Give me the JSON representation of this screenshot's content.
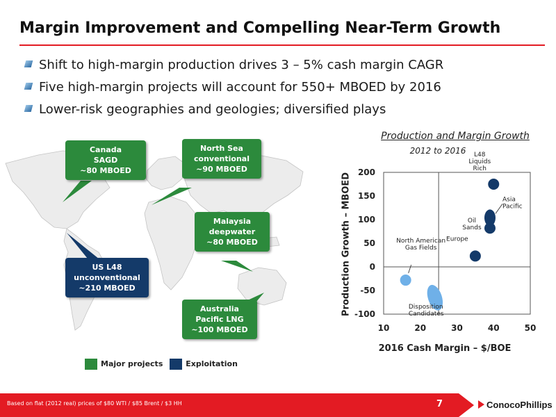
{
  "title": "Margin Improvement and Compelling Near-Term Growth",
  "bullets": [
    "Shift to high-margin production drives 3 – 5% cash margin CAGR",
    "Five high-margin projects will account for 550+ MBOED by 2016",
    "Lower-risk geographies and geologies; diversified plays"
  ],
  "map": {
    "callouts": [
      {
        "lines": [
          "Canada",
          "SAGD",
          "~80 MBOED"
        ],
        "type": "major"
      },
      {
        "lines": [
          "North Sea",
          "conventional",
          "~90 MBOED"
        ],
        "type": "major"
      },
      {
        "lines": [
          "Malaysia",
          "deepwater",
          "~80 MBOED"
        ],
        "type": "major"
      },
      {
        "lines": [
          "US L48",
          "unconventional",
          "~210 MBOED"
        ],
        "type": "exploitation"
      },
      {
        "lines": [
          "Australia",
          "Pacific LNG",
          "~100 MBOED"
        ],
        "type": "major"
      }
    ],
    "legend": {
      "major": "Major projects",
      "exploitation": "Exploitation"
    },
    "colors": {
      "major": "#2c8a3c",
      "exploitation": "#143a69"
    }
  },
  "chart_data": {
    "type": "scatter",
    "title": "Production and Margin Growth",
    "subtitle": "2012 to 2016",
    "xlabel": "2016 Cash Margin – $/BOE",
    "ylabel": "Production Growth – MBOED",
    "xlim": [
      10,
      50
    ],
    "ylim": [
      -100,
      200
    ],
    "xticks": [
      10,
      20,
      30,
      40,
      50
    ],
    "yticks": [
      200,
      150,
      100,
      50,
      0,
      -50,
      -100
    ],
    "grid": false,
    "points": [
      {
        "label": "L48 Liquids Rich",
        "x": 40,
        "y": 175,
        "color": "#143a69"
      },
      {
        "label": "Asia Pacific",
        "x": 39,
        "y": 95,
        "color": "#143a69"
      },
      {
        "label": "Oil Sands",
        "x": 39,
        "y": 82,
        "color": "#143a69"
      },
      {
        "label": "Europe",
        "x": 35,
        "y": 23,
        "color": "#143a69"
      },
      {
        "label": "North American Gas Fields",
        "x": 16,
        "y": -28,
        "color": "#6fb0e8"
      },
      {
        "label": "Disposition Candidates",
        "x": 24,
        "y": -65,
        "color": "#6fb0e8"
      }
    ],
    "reference_lines": {
      "x": 25,
      "y": 0
    }
  },
  "footer": {
    "footnote": "Based on flat (2012 real) prices of $80 WTI / $85 Brent / $3 HH",
    "page_number": "7",
    "logo": "ConocoPhillips"
  }
}
